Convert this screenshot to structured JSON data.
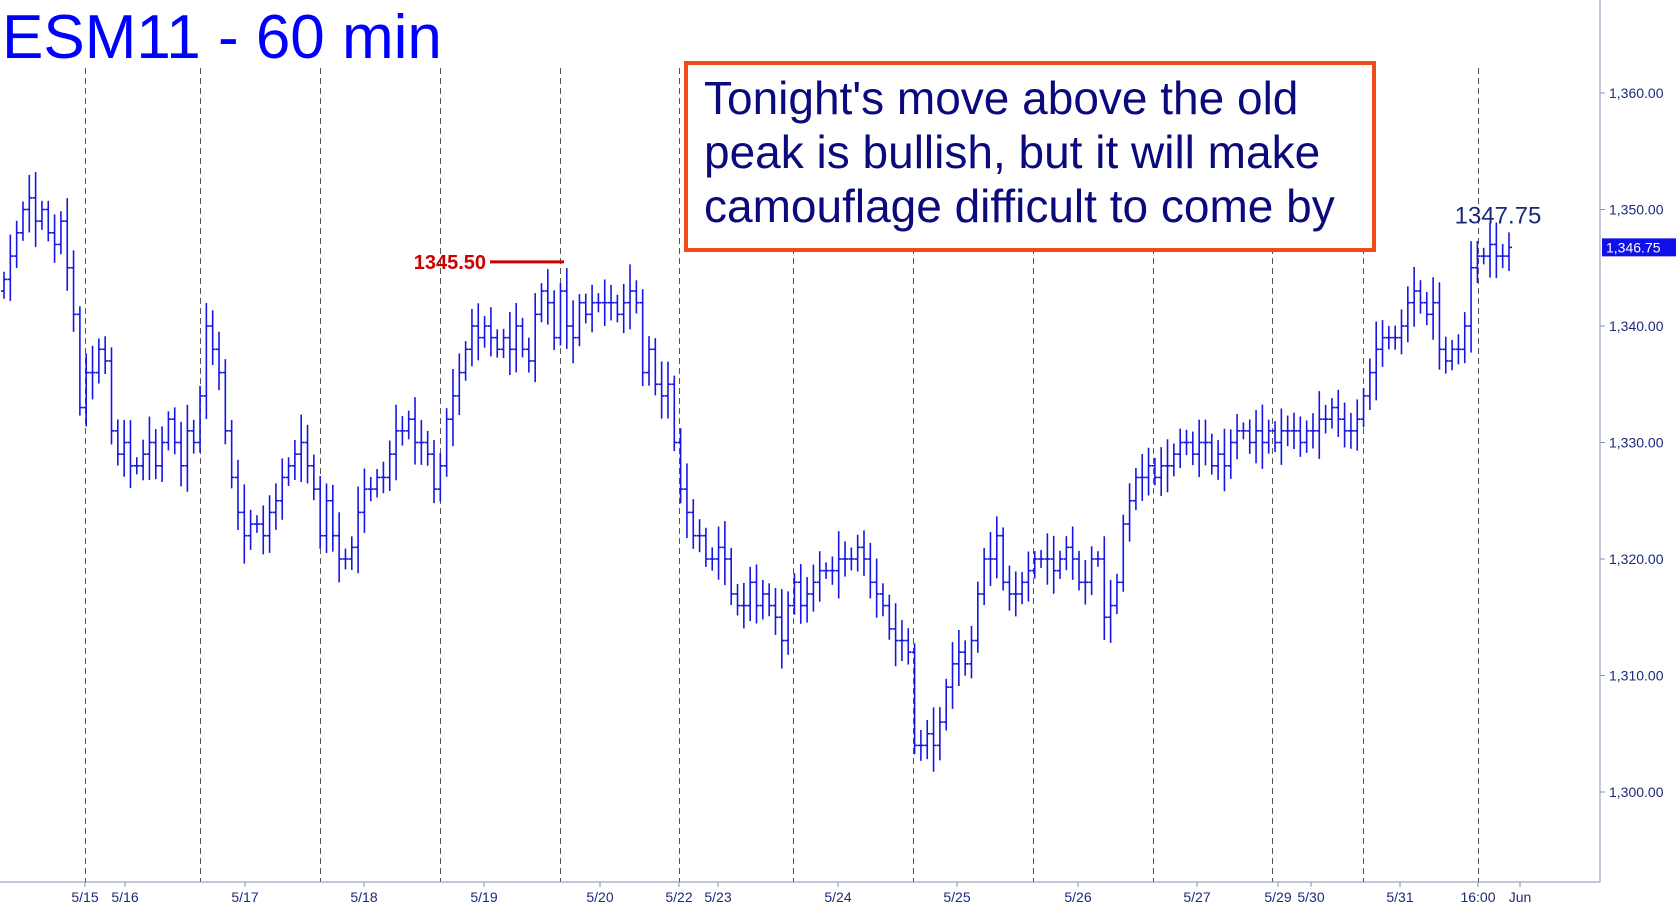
{
  "chart_data": {
    "type": "ohlc",
    "title": "ESM11 - 60 min",
    "annotation_lines": [
      "Tonight's move above the old",
      "peak is bullish, but  it will make",
      "camouflage difficult to come by"
    ],
    "x_tick_labels": [
      "5/15",
      "5/16",
      "5/17",
      "5/18",
      "5/19",
      "5/20",
      "5/22",
      "5/23",
      "5/24",
      "5/25",
      "5/26",
      "5/27",
      "5/29",
      "5/30",
      "5/31",
      "16:00",
      "Jun"
    ],
    "y_ticks": [
      1300,
      1310,
      1320,
      1330,
      1340,
      1350,
      1360
    ],
    "y_tick_labels": [
      "1,300.00",
      "1,310.00",
      "1,320.00",
      "1,330.00",
      "1,340.00",
      "1,350.00",
      "1,360.00"
    ],
    "ylim": [
      1295,
      1367
    ],
    "last_price": 1346.75,
    "last_price_label": "1,346.75",
    "peak_label": "1345.50",
    "peak_value": 1345.5,
    "high_label": "1347.75",
    "high_value": 1347.75,
    "grid": "vertical dashed session separators",
    "series": [
      {
        "values": [
          1344,
          1346,
          1348,
          1350,
          1351,
          1349,
          1350,
          1348,
          1347,
          1349,
          1345,
          1341,
          1333,
          1336,
          1336,
          1338,
          1337,
          1331,
          1329,
          1330,
          1328,
          1328,
          1329,
          1330,
          1328,
          1330,
          1332,
          1330,
          1328,
          1331,
          1330,
          1334,
          1340,
          1338,
          1336,
          1331,
          1327,
          1324,
          1322,
          1323,
          1323,
          1322,
          1324,
          1325,
          1327,
          1328,
          1329,
          1330,
          1328,
          1326,
          1322,
          1325,
          1322,
          1320,
          1320,
          1321,
          1324,
          1326,
          1326,
          1327,
          1327,
          1329,
          1331,
          1331,
          1332,
          1330,
          1330,
          1329,
          1326,
          1328,
          1332,
          1334,
          1336,
          1338,
          1340,
          1339,
          1340,
          1339,
          1338,
          1339,
          1338,
          1340,
          1338,
          1337,
          1341,
          1343,
          1342,
          1339,
          1343,
          1340,
          1339,
          1342,
          1341,
          1342,
          1342,
          1342,
          1342,
          1341,
          1342,
          1343,
          1342,
          1336,
          1338,
          1335,
          1334,
          1335,
          1330,
          1326,
          1324,
          1322,
          1322,
          1320,
          1320,
          1321,
          1320,
          1317,
          1316,
          1316,
          1318,
          1316,
          1317,
          1316,
          1315,
          1313,
          1316,
          1318,
          1316,
          1317,
          1318,
          1319,
          1319,
          1319,
          1320,
          1320,
          1320,
          1321,
          1320,
          1318,
          1317,
          1316,
          1314,
          1313,
          1313,
          1312,
          1304,
          1304,
          1305,
          1304,
          1306,
          1309,
          1311,
          1312,
          1311,
          1313,
          1317,
          1320,
          1320,
          1322,
          1318,
          1317,
          1317,
          1318,
          1319,
          1320,
          1320,
          1320,
          1319,
          1320,
          1321,
          1320,
          1318,
          1318,
          1320,
          1320,
          1315,
          1316,
          1318,
          1323,
          1325,
          1327,
          1327,
          1328,
          1327,
          1328,
          1328,
          1329,
          1330,
          1330,
          1329,
          1330,
          1330,
          1328,
          1329,
          1328,
          1330,
          1331,
          1331,
          1330,
          1331,
          1330,
          1331,
          1330,
          1331,
          1331,
          1331,
          1330,
          1331,
          1331,
          1332,
          1332,
          1333,
          1332,
          1331,
          1331,
          1332,
          1334,
          1336,
          1338,
          1339,
          1339,
          1339,
          1340,
          1342,
          1343,
          1342,
          1341,
          1342,
          1338,
          1337,
          1338,
          1338,
          1340,
          1345,
          1346,
          1346,
          1347,
          1346,
          1346,
          1346.75
        ]
      }
    ]
  }
}
